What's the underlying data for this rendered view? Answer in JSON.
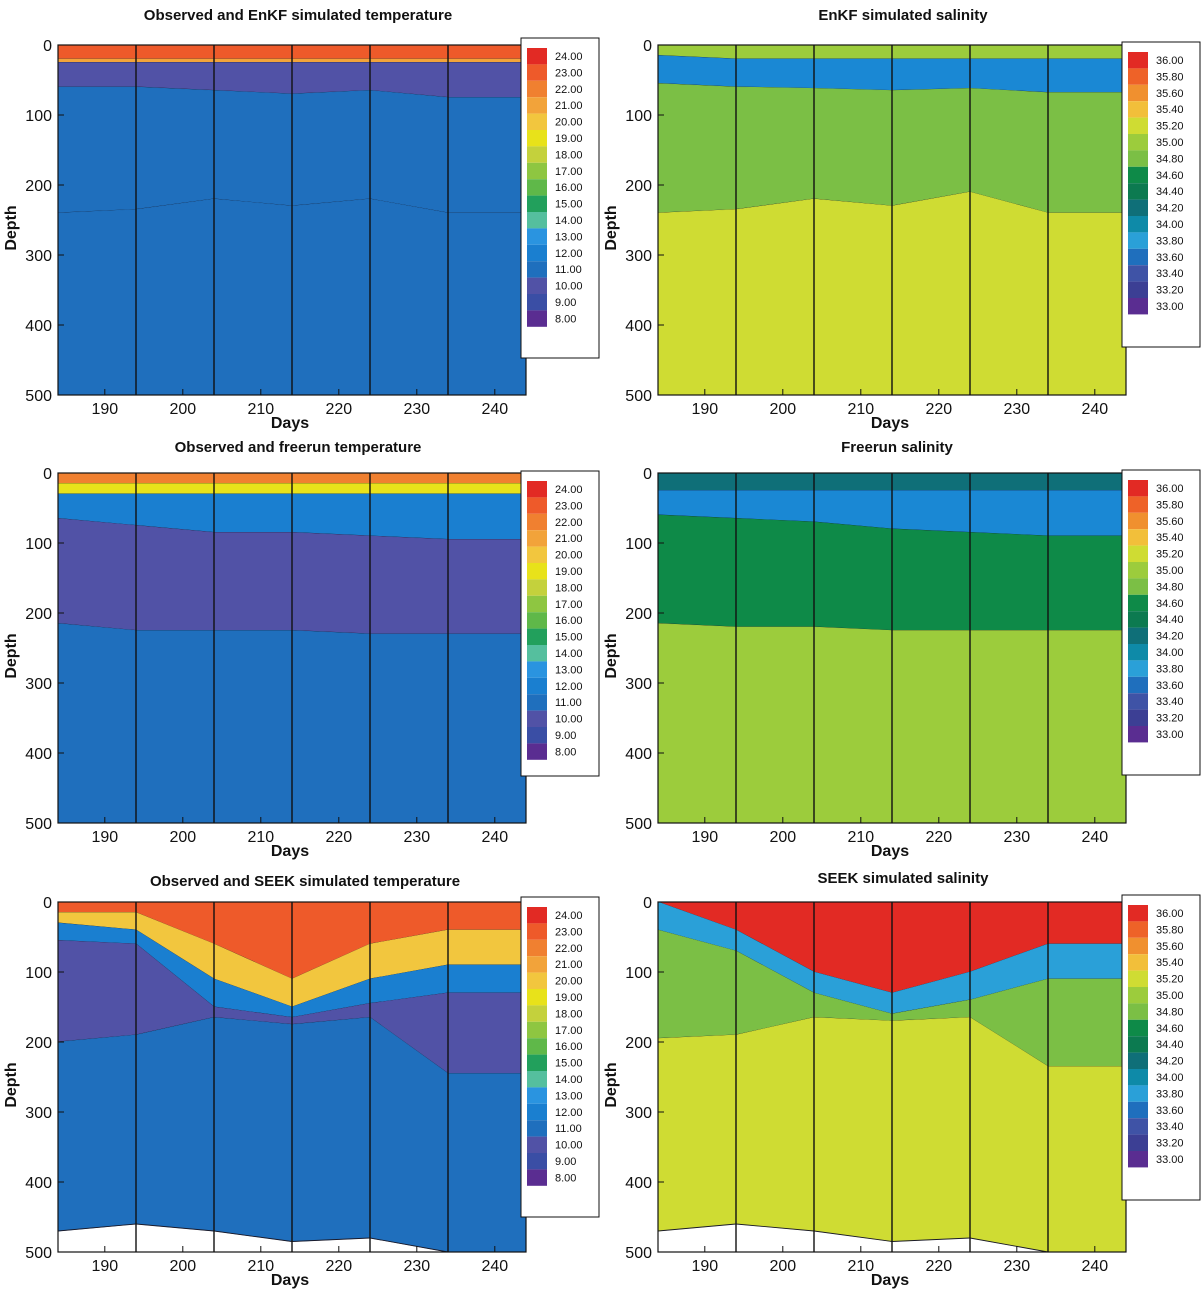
{
  "colors": {
    "temperature": [
      "#5a2d91",
      "#3a4ea5",
      "#5152a6",
      "#1f6fbd",
      "#1a7fd0",
      "#2a94e0",
      "#55bf9e",
      "#22a05c",
      "#0e8a48",
      "#5fb849",
      "#8ec641",
      "#c4d13c",
      "#e8e21a",
      "#f2c63e",
      "#f2a33a",
      "#f08030",
      "#ee5a2a",
      "#e22a24"
    ],
    "salinity": [
      "#5a2d91",
      "#3c3f94",
      "#3f53a6",
      "#1f6fbd",
      "#1a88d4",
      "#2aa0d8",
      "#0e8aa8",
      "#0f6f78",
      "#0c7a50",
      "#0e8a48",
      "#7bbf45",
      "#9ccc3c",
      "#cfdc33",
      "#ede519",
      "#f2bf3a",
      "#f0902f",
      "#ee6228",
      "#e22a24"
    ]
  },
  "charts": [
    {
      "title": "Observed and EnKF simulated temperature",
      "variable": "temperature",
      "xlabel": "Days",
      "ylabel": "Depth",
      "xticks": [
        "190",
        "200",
        "210",
        "220",
        "230",
        "240"
      ],
      "yticks": [
        "0",
        "100",
        "200",
        "300",
        "400",
        "500"
      ],
      "legend": [
        "24.00",
        "23.00",
        "22.00",
        "21.00",
        "20.00",
        "19.00",
        "18.00",
        "17.00",
        "16.00",
        "15.00",
        "14.00",
        "13.00",
        "12.00",
        "11.00",
        "10.00",
        "9.00",
        "8.00"
      ]
    },
    {
      "title": "EnKF simulated salinity",
      "variable": "salinity",
      "xlabel": "Days",
      "ylabel": "Depth",
      "xticks": [
        "190",
        "200",
        "210",
        "220",
        "230",
        "240"
      ],
      "yticks": [
        "0",
        "100",
        "200",
        "300",
        "400",
        "500"
      ],
      "legend": [
        "36.00",
        "35.80",
        "35.60",
        "35.40",
        "35.20",
        "35.00",
        "34.80",
        "34.60",
        "34.40",
        "34.20",
        "34.00",
        "33.80",
        "33.60",
        "33.40",
        "33.20",
        "33.00"
      ]
    },
    {
      "title": "Observed and freerun temperature",
      "variable": "temperature",
      "xlabel": "Days",
      "ylabel": "Depth",
      "xticks": [
        "190",
        "200",
        "210",
        "220",
        "230",
        "240"
      ],
      "yticks": [
        "0",
        "100",
        "200",
        "300",
        "400",
        "500"
      ],
      "legend": [
        "24.00",
        "23.00",
        "22.00",
        "21.00",
        "20.00",
        "19.00",
        "18.00",
        "17.00",
        "16.00",
        "15.00",
        "14.00",
        "13.00",
        "12.00",
        "11.00",
        "10.00",
        "9.00",
        "8.00"
      ]
    },
    {
      "title": "Freerun salinity",
      "variable": "salinity",
      "xlabel": "Days",
      "ylabel": "Depth",
      "xticks": [
        "190",
        "200",
        "210",
        "220",
        "230",
        "240"
      ],
      "yticks": [
        "0",
        "100",
        "200",
        "300",
        "400",
        "500"
      ],
      "legend": [
        "36.00",
        "35.80",
        "35.60",
        "35.40",
        "35.20",
        "35.00",
        "34.80",
        "34.60",
        "34.40",
        "34.20",
        "34.00",
        "33.80",
        "33.60",
        "33.40",
        "33.20",
        "33.00"
      ]
    },
    {
      "title": "Observed and SEEK simulated temperature",
      "variable": "temperature",
      "xlabel": "Days",
      "ylabel": "Depth",
      "xticks": [
        "190",
        "200",
        "210",
        "220",
        "230",
        "240"
      ],
      "yticks": [
        "0",
        "100",
        "200",
        "300",
        "400",
        "500"
      ],
      "legend": [
        "24.00",
        "23.00",
        "22.00",
        "21.00",
        "20.00",
        "19.00",
        "18.00",
        "17.00",
        "16.00",
        "15.00",
        "14.00",
        "13.00",
        "12.00",
        "11.00",
        "10.00",
        "9.00",
        "8.00"
      ]
    },
    {
      "title": "SEEK simulated salinity",
      "variable": "salinity",
      "xlabel": "Days",
      "ylabel": "Depth",
      "xticks": [
        "190",
        "200",
        "210",
        "220",
        "230",
        "240"
      ],
      "yticks": [
        "0",
        "100",
        "200",
        "300",
        "400",
        "500"
      ],
      "legend": [
        "36.00",
        "35.80",
        "35.60",
        "35.40",
        "35.20",
        "35.00",
        "34.80",
        "34.60",
        "34.40",
        "34.20",
        "34.00",
        "33.80",
        "33.60",
        "33.40",
        "33.20",
        "33.00"
      ]
    }
  ],
  "chart_data": [
    {
      "type": "heatmap",
      "title": "Observed and EnKF simulated temperature",
      "xlabel": "Days",
      "ylabel": "Depth",
      "xlim": [
        184,
        244
      ],
      "ylim": [
        500,
        0
      ],
      "x_periods": [
        184,
        194,
        204,
        214,
        224,
        234,
        244
      ],
      "layers": [
        {
          "color_value": 23.0,
          "top": [
            0,
            0,
            0,
            0,
            0,
            0
          ],
          "bottom": [
            20,
            20,
            20,
            20,
            20,
            20
          ]
        },
        {
          "color_value": 21.5,
          "top": [
            20,
            20,
            20,
            20,
            20,
            20
          ],
          "bottom": [
            25,
            25,
            25,
            25,
            25,
            25
          ]
        },
        {
          "color_value": 10.0,
          "top": [
            25,
            25,
            25,
            25,
            25,
            25
          ],
          "bottom": [
            60,
            60,
            65,
            70,
            65,
            75
          ]
        },
        {
          "color_value": 11.0,
          "top": [
            60,
            60,
            65,
            70,
            65,
            75
          ],
          "bottom": [
            240,
            235,
            220,
            230,
            220,
            240
          ]
        },
        {
          "color_value": 11.0,
          "top": [
            240,
            235,
            220,
            230,
            220,
            240
          ],
          "bottom": [
            500,
            500,
            500,
            500,
            500,
            500
          ]
        }
      ],
      "legend": {
        "variable": "temperature",
        "min": 8.0,
        "max": 24.0
      }
    },
    {
      "type": "heatmap",
      "title": "EnKF simulated salinity",
      "xlabel": "Days",
      "ylabel": "Depth",
      "xlim": [
        184,
        244
      ],
      "ylim": [
        500,
        0
      ],
      "x_periods": [
        184,
        194,
        204,
        214,
        224,
        234,
        244
      ],
      "layers": [
        {
          "color_value": 34.9,
          "top": [
            0,
            0,
            0,
            0,
            0,
            0
          ],
          "bottom": [
            15,
            20,
            20,
            20,
            20,
            20
          ]
        },
        {
          "color_value": 33.7,
          "top": [
            15,
            20,
            20,
            20,
            20,
            20
          ],
          "bottom": [
            55,
            60,
            62,
            65,
            62,
            68
          ]
        },
        {
          "color_value": 34.7,
          "top": [
            55,
            60,
            62,
            65,
            62,
            68
          ],
          "bottom": [
            240,
            235,
            220,
            230,
            210,
            240
          ]
        },
        {
          "color_value": 35.1,
          "top": [
            240,
            235,
            220,
            230,
            210,
            240
          ],
          "bottom": [
            500,
            500,
            500,
            500,
            500,
            500
          ]
        }
      ],
      "legend": {
        "variable": "salinity",
        "min": 33.0,
        "max": 36.0
      }
    },
    {
      "type": "heatmap",
      "title": "Observed and freerun temperature",
      "xlabel": "Days",
      "ylabel": "Depth",
      "xlim": [
        184,
        244
      ],
      "ylim": [
        500,
        0
      ],
      "x_periods": [
        184,
        194,
        204,
        214,
        224,
        234,
        244
      ],
      "layers": [
        {
          "color_value": 22.5,
          "top": [
            0,
            0,
            0,
            0,
            0,
            0
          ],
          "bottom": [
            15,
            15,
            15,
            15,
            15,
            15
          ]
        },
        {
          "color_value": 19.5,
          "top": [
            15,
            15,
            15,
            15,
            15,
            15
          ],
          "bottom": [
            30,
            30,
            30,
            30,
            30,
            30
          ]
        },
        {
          "color_value": 12.0,
          "top": [
            30,
            30,
            30,
            30,
            30,
            30
          ],
          "bottom": [
            65,
            75,
            85,
            85,
            90,
            95
          ]
        },
        {
          "color_value": 10.0,
          "top": [
            65,
            75,
            85,
            85,
            90,
            95
          ],
          "bottom": [
            215,
            225,
            225,
            225,
            230,
            230
          ]
        },
        {
          "color_value": 11.0,
          "top": [
            215,
            225,
            225,
            225,
            230,
            230
          ],
          "bottom": [
            500,
            500,
            500,
            500,
            500,
            500
          ]
        }
      ],
      "legend": {
        "variable": "temperature",
        "min": 8.0,
        "max": 24.0
      }
    },
    {
      "type": "heatmap",
      "title": "Freerun salinity",
      "xlabel": "Days",
      "ylabel": "Depth",
      "xlim": [
        184,
        244
      ],
      "ylim": [
        500,
        0
      ],
      "x_periods": [
        184,
        194,
        204,
        214,
        224,
        234,
        244
      ],
      "layers": [
        {
          "color_value": 34.2,
          "top": [
            0,
            0,
            0,
            0,
            0,
            0
          ],
          "bottom": [
            25,
            25,
            25,
            25,
            25,
            25
          ]
        },
        {
          "color_value": 33.7,
          "top": [
            25,
            25,
            25,
            25,
            25,
            25
          ],
          "bottom": [
            60,
            65,
            70,
            80,
            85,
            90
          ]
        },
        {
          "color_value": 34.5,
          "top": [
            60,
            65,
            70,
            80,
            85,
            90
          ],
          "bottom": [
            215,
            220,
            220,
            225,
            225,
            225
          ]
        },
        {
          "color_value": 35.0,
          "top": [
            215,
            220,
            220,
            225,
            225,
            225
          ],
          "bottom": [
            500,
            500,
            500,
            500,
            500,
            500
          ]
        }
      ],
      "legend": {
        "variable": "salinity",
        "min": 33.0,
        "max": 36.0
      }
    },
    {
      "type": "heatmap",
      "title": "Observed and SEEK simulated temperature",
      "xlabel": "Days",
      "ylabel": "Depth",
      "xlim": [
        184,
        244
      ],
      "ylim": [
        500,
        0
      ],
      "x_periods": [
        184,
        194,
        204,
        214,
        224,
        234,
        244
      ],
      "layers": [
        {
          "color_value": 23.0,
          "top": [
            0,
            0,
            0,
            0,
            0,
            0
          ],
          "bottom": [
            15,
            15,
            60,
            110,
            60,
            40
          ]
        },
        {
          "color_value": 20.0,
          "top": [
            15,
            15,
            60,
            110,
            60,
            40
          ],
          "bottom": [
            30,
            40,
            110,
            150,
            110,
            90
          ]
        },
        {
          "color_value": 12.0,
          "top": [
            30,
            40,
            110,
            150,
            110,
            90
          ],
          "bottom": [
            55,
            60,
            150,
            165,
            145,
            130
          ]
        },
        {
          "color_value": 9.5,
          "top": [
            55,
            60,
            150,
            165,
            145,
            130
          ],
          "bottom": [
            200,
            190,
            165,
            175,
            165,
            245
          ]
        },
        {
          "color_value": 11.0,
          "top": [
            200,
            190,
            165,
            175,
            165,
            245
          ],
          "bottom": [
            470,
            460,
            470,
            485,
            480,
            500
          ]
        }
      ],
      "legend": {
        "variable": "temperature",
        "min": 8.0,
        "max": 24.0
      }
    },
    {
      "type": "heatmap",
      "title": "SEEK simulated salinity",
      "xlabel": "Days",
      "ylabel": "Depth",
      "xlim": [
        184,
        244
      ],
      "ylim": [
        500,
        0
      ],
      "x_periods": [
        184,
        194,
        204,
        214,
        224,
        234,
        244
      ],
      "layers": [
        {
          "color_value": 36.0,
          "top": [
            0,
            0,
            0,
            0,
            0,
            0
          ],
          "bottom": [
            0,
            40,
            100,
            130,
            100,
            60
          ]
        },
        {
          "color_value": 33.8,
          "top": [
            0,
            40,
            100,
            130,
            100,
            60
          ],
          "bottom": [
            40,
            70,
            130,
            160,
            140,
            110
          ]
        },
        {
          "color_value": 34.7,
          "top": [
            40,
            70,
            130,
            160,
            140,
            110
          ],
          "bottom": [
            195,
            190,
            165,
            170,
            165,
            235
          ]
        },
        {
          "color_value": 35.1,
          "top": [
            195,
            190,
            165,
            170,
            165,
            235
          ],
          "bottom": [
            470,
            460,
            470,
            485,
            480,
            500
          ]
        }
      ],
      "legend": {
        "variable": "salinity",
        "min": 33.0,
        "max": 36.0
      }
    }
  ]
}
